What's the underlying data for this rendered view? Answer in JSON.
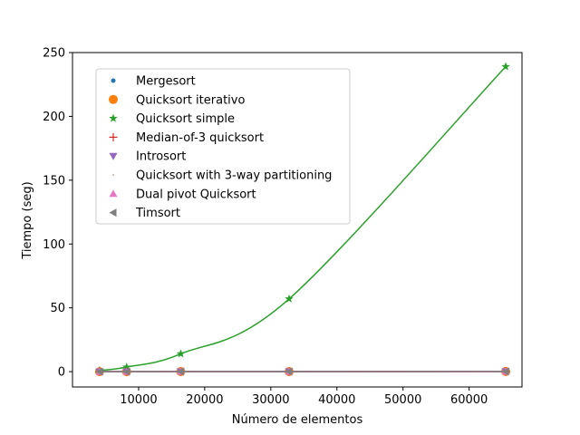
{
  "chart_data": {
    "type": "line",
    "title": "",
    "xlabel": "Número de elementos",
    "ylabel": "Tiempo (seg)",
    "xlim": [
      0,
      68000
    ],
    "ylim": [
      -12,
      250
    ],
    "xticks": [
      10000,
      20000,
      30000,
      40000,
      50000,
      60000
    ],
    "yticks": [
      0,
      50,
      100,
      150,
      200,
      250
    ],
    "grid": false,
    "legend_position": "upper-left",
    "x": [
      4096,
      8192,
      16384,
      32768,
      65536
    ],
    "series": [
      {
        "name": "Mergesort",
        "color": "#1f77b4",
        "marker": "point",
        "values": [
          0.01,
          0.02,
          0.04,
          0.08,
          0.17
        ]
      },
      {
        "name": "Quicksort iterativo",
        "color": "#ff7f0e",
        "marker": "circle",
        "values": [
          0.01,
          0.02,
          0.03,
          0.06,
          0.12
        ]
      },
      {
        "name": "Quicksort simple",
        "color": "#2ca02c",
        "marker": "star",
        "values": [
          0.9,
          3.6,
          14.0,
          57.0,
          239.0
        ]
      },
      {
        "name": "Median-of-3 quicksort",
        "color": "#d62728",
        "marker": "plus",
        "values": [
          0.01,
          0.02,
          0.03,
          0.06,
          0.12
        ]
      },
      {
        "name": "Introsort",
        "color": "#9467bd",
        "marker": "triangle-down",
        "values": [
          0.01,
          0.02,
          0.03,
          0.07,
          0.14
        ]
      },
      {
        "name": "Quicksort with 3-way partitioning",
        "color": "#8c564b",
        "marker": "pixel",
        "values": [
          0.01,
          0.02,
          0.04,
          0.08,
          0.16
        ]
      },
      {
        "name": "Dual pivot Quicksort",
        "color": "#e377c2",
        "marker": "triangle-up",
        "values": [
          0.01,
          0.02,
          0.03,
          0.06,
          0.12
        ]
      },
      {
        "name": "Timsort",
        "color": "#7f7f7f",
        "marker": "triangle-left",
        "values": [
          0.01,
          0.02,
          0.03,
          0.07,
          0.14
        ]
      }
    ]
  }
}
